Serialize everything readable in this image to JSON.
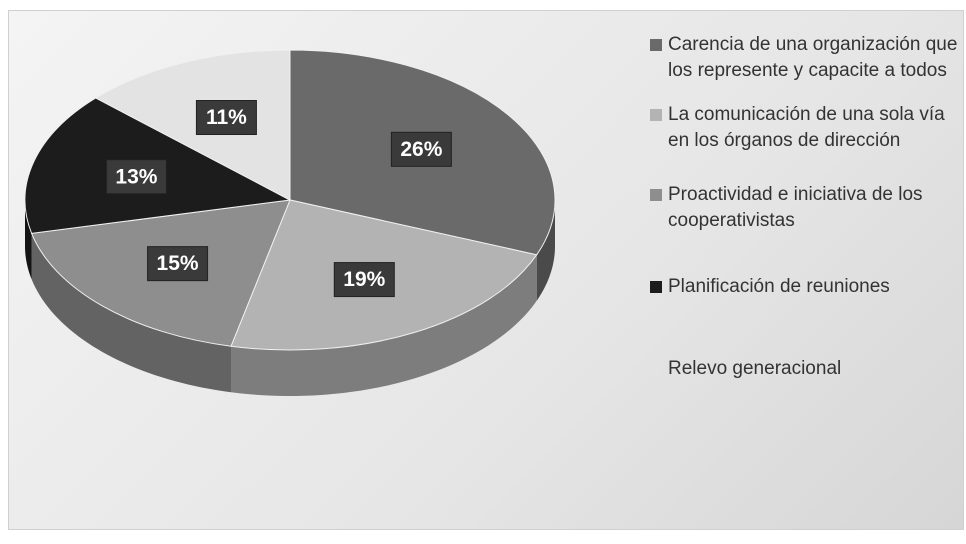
{
  "chart_data": {
    "type": "pie",
    "categories": [
      "Carencia de una organización que los represente y capacite a todos",
      "La comunicación de una sola vía en los órganos de dirección",
      "Proactividad e iniciativa de los cooperativistas",
      "Planificación de reuniones",
      "Relevo generacional"
    ],
    "values": [
      26,
      19,
      15,
      13,
      11
    ],
    "value_labels": [
      "26%",
      "19%",
      "15%",
      "13%",
      "11%"
    ],
    "colors": [
      "#6a6a6a",
      "#b3b3b3",
      "#8e8e8e",
      "#1c1c1c",
      "#e3e3e3"
    ],
    "legend": "right"
  }
}
